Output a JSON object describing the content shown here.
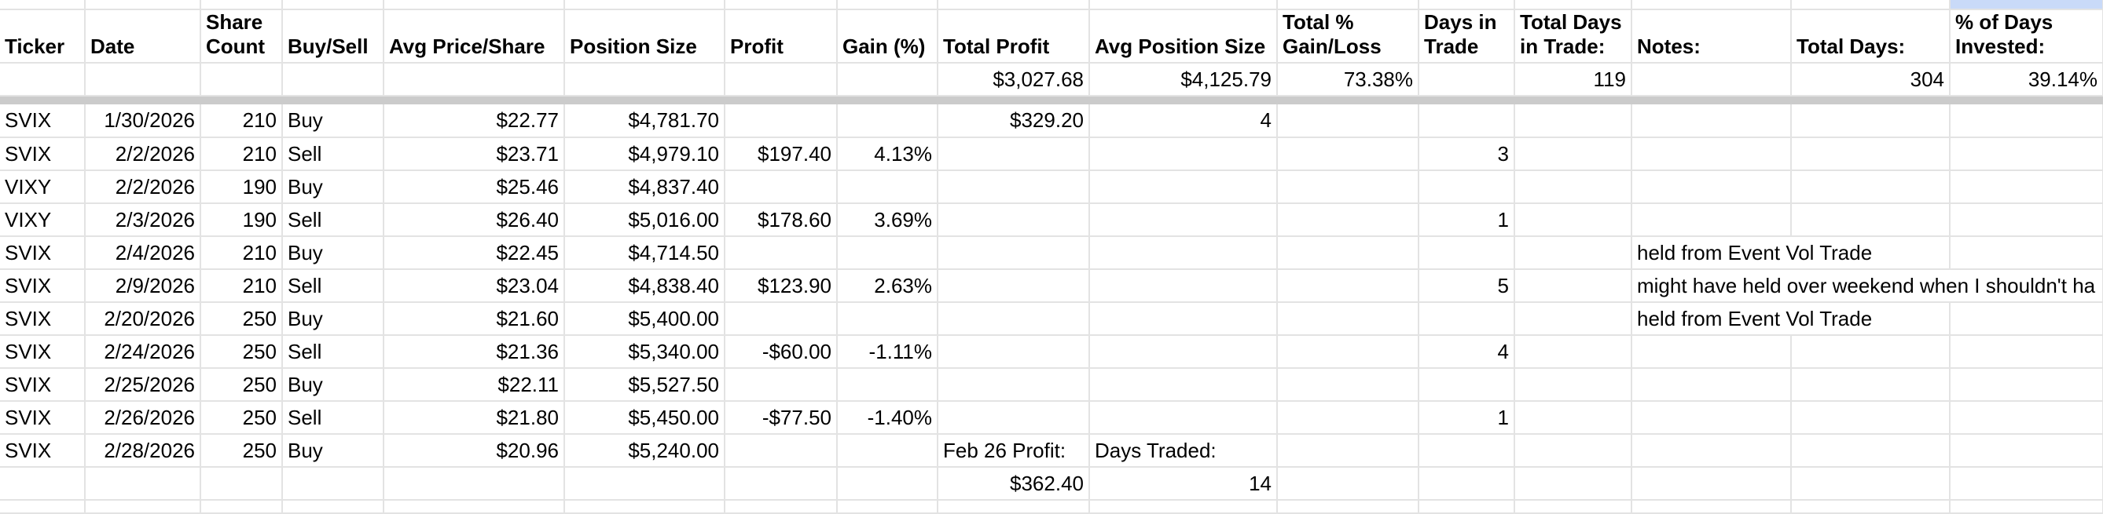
{
  "sheet": {
    "columns": [
      {
        "key": "ticker",
        "label": "Ticker"
      },
      {
        "key": "date",
        "label": "Date"
      },
      {
        "key": "share-count",
        "label": "Share Count"
      },
      {
        "key": "buy-sell",
        "label": "Buy/Sell"
      },
      {
        "key": "avg-price-share",
        "label": "Avg Price/Share"
      },
      {
        "key": "position-size",
        "label": "Position Size"
      },
      {
        "key": "profit",
        "label": "Profit"
      },
      {
        "key": "gain-pct",
        "label": "Gain (%)"
      },
      {
        "key": "total-profit",
        "label": "Total Profit"
      },
      {
        "key": "avg-position-size",
        "label": "Avg Position Size"
      },
      {
        "key": "total-pct-gain-loss",
        "label": "Total % Gain/Loss"
      },
      {
        "key": "days-in-trade",
        "label": "Days in Trade"
      },
      {
        "key": "total-days-in-trade",
        "label": "Total Days in Trade:"
      },
      {
        "key": "notes",
        "label": "Notes:"
      },
      {
        "key": "total-days",
        "label": "Total Days:"
      },
      {
        "key": "pct-days-invested",
        "label": "% of Days Invested:"
      }
    ],
    "summary_row": {
      "cells": [
        "",
        "",
        "",
        "",
        "",
        "",
        "",
        "",
        "$3,027.68",
        "$4,125.79",
        "73.38%",
        "",
        "119",
        "",
        "304",
        "39.14%"
      ]
    },
    "rows": [
      {
        "cells": [
          "SVIX",
          "1/30/2026",
          "210",
          "Buy",
          "$22.77",
          "$4,781.70",
          "",
          "",
          "$329.20",
          "4",
          "",
          "",
          "",
          "",
          "",
          ""
        ],
        "notes_span": 1
      },
      {
        "cells": [
          "SVIX",
          "2/2/2026",
          "210",
          "Sell",
          "$23.71",
          "$4,979.10",
          "$197.40",
          "4.13%",
          "",
          "",
          "",
          "3",
          "",
          "",
          "",
          ""
        ],
        "notes_span": 1
      },
      {
        "cells": [
          "VIXY",
          "2/2/2026",
          "190",
          "Buy",
          "$25.46",
          "$4,837.40",
          "",
          "",
          "",
          "",
          "",
          "",
          "",
          "",
          "",
          ""
        ],
        "notes_span": 1
      },
      {
        "cells": [
          "VIXY",
          "2/3/2026",
          "190",
          "Sell",
          "$26.40",
          "$5,016.00",
          "$178.60",
          "3.69%",
          "",
          "",
          "",
          "1",
          "",
          "",
          "",
          ""
        ],
        "notes_span": 1
      },
      {
        "cells": [
          "SVIX",
          "2/4/2026",
          "210",
          "Buy",
          "$22.45",
          "$4,714.50",
          "",
          "",
          "",
          "",
          "",
          "",
          "",
          "held from Event Vol Trade",
          "",
          ""
        ],
        "notes_span": 2
      },
      {
        "cells": [
          "SVIX",
          "2/9/2026",
          "210",
          "Sell",
          "$23.04",
          "$4,838.40",
          "$123.90",
          "2.63%",
          "",
          "",
          "",
          "5",
          "",
          "might have held over weekend when I shouldn't ha",
          "",
          ""
        ],
        "notes_span": 3
      },
      {
        "cells": [
          "SVIX",
          "2/20/2026",
          "250",
          "Buy",
          "$21.60",
          "$5,400.00",
          "",
          "",
          "",
          "",
          "",
          "",
          "",
          "held from Event Vol Trade",
          "",
          ""
        ],
        "notes_span": 2
      },
      {
        "cells": [
          "SVIX",
          "2/24/2026",
          "250",
          "Sell",
          "$21.36",
          "$5,340.00",
          "-$60.00",
          "-1.11%",
          "",
          "",
          "",
          "4",
          "",
          "",
          "",
          ""
        ],
        "notes_span": 1
      },
      {
        "cells": [
          "SVIX",
          "2/25/2026",
          "250",
          "Buy",
          "$22.11",
          "$5,527.50",
          "",
          "",
          "",
          "",
          "",
          "",
          "",
          "",
          "",
          ""
        ],
        "notes_span": 1
      },
      {
        "cells": [
          "SVIX",
          "2/26/2026",
          "250",
          "Sell",
          "$21.80",
          "$5,450.00",
          "-$77.50",
          "-1.40%",
          "",
          "",
          "",
          "1",
          "",
          "",
          "",
          ""
        ],
        "notes_span": 1
      },
      {
        "cells": [
          "SVIX",
          "2/28/2026",
          "250",
          "Buy",
          "$20.96",
          "$5,240.00",
          "",
          "",
          "Feb 26 Profit:",
          "Days Traded:",
          "",
          "",
          "",
          "",
          "",
          ""
        ],
        "notes_span": 1
      },
      {
        "cells": [
          "",
          "",
          "",
          "",
          "",
          "",
          "",
          "",
          "$362.40",
          "14",
          "",
          "",
          "",
          "",
          "",
          ""
        ],
        "notes_span": 1
      },
      {
        "cells": [
          "",
          "",
          "",
          "",
          "",
          "",
          "",
          "",
          "",
          "",
          "",
          "",
          "",
          "",
          "",
          ""
        ],
        "notes_span": 1
      }
    ],
    "colors": {
      "gridline": "#e3e3e3",
      "frozen_divider": "#cbcbcb",
      "highlight_cell": "#c9daf8",
      "text": "#000000",
      "background": "#ffffff"
    }
  }
}
